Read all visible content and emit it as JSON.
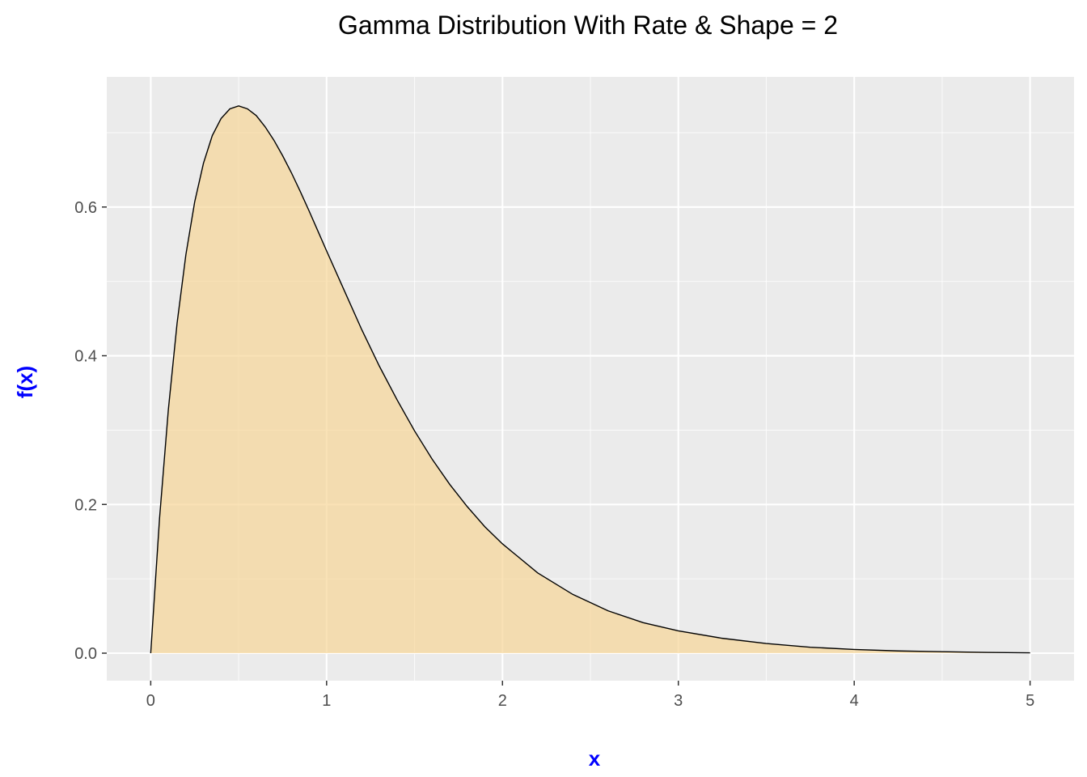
{
  "chart_data": {
    "type": "area",
    "title": "Gamma Distribution With Rate & Shape = 2",
    "xlabel": "x",
    "ylabel": "f(x)",
    "xlim": [
      -0.25,
      5.25
    ],
    "ylim": [
      -0.037,
      0.775
    ],
    "x_ticks": [
      {
        "value": 0,
        "label": "0"
      },
      {
        "value": 1,
        "label": "1"
      },
      {
        "value": 2,
        "label": "2"
      },
      {
        "value": 3,
        "label": "3"
      },
      {
        "value": 4,
        "label": "4"
      },
      {
        "value": 5,
        "label": "5"
      }
    ],
    "y_ticks": [
      {
        "value": 0.0,
        "label": "0.0"
      },
      {
        "value": 0.2,
        "label": "0.2"
      },
      {
        "value": 0.4,
        "label": "0.4"
      },
      {
        "value": 0.6,
        "label": "0.6"
      }
    ],
    "grid": true,
    "legend": "none",
    "series": [
      {
        "fill_color": "#f7d597",
        "fill_opacity": 0.7,
        "line_color": "#000000",
        "x": [
          0.0,
          0.05,
          0.1,
          0.15,
          0.2,
          0.25,
          0.3,
          0.35,
          0.4,
          0.45,
          0.5,
          0.55,
          0.6,
          0.65,
          0.7,
          0.75,
          0.8,
          0.85,
          0.9,
          0.95,
          1.0,
          1.1,
          1.2,
          1.3,
          1.4,
          1.5,
          1.6,
          1.7,
          1.8,
          1.9,
          2.0,
          2.2,
          2.4,
          2.6,
          2.8,
          3.0,
          3.25,
          3.5,
          3.75,
          4.0,
          4.25,
          4.5,
          4.75,
          5.0
        ],
        "y": [
          0.0,
          0.181,
          0.327,
          0.444,
          0.536,
          0.607,
          0.659,
          0.696,
          0.719,
          0.732,
          0.736,
          0.732,
          0.723,
          0.708,
          0.69,
          0.669,
          0.646,
          0.621,
          0.595,
          0.568,
          0.541,
          0.488,
          0.435,
          0.386,
          0.341,
          0.299,
          0.261,
          0.227,
          0.197,
          0.17,
          0.147,
          0.108,
          0.079,
          0.057,
          0.041,
          0.03,
          0.02,
          0.013,
          0.008,
          0.005,
          0.003,
          0.002,
          0.001,
          0.0005
        ]
      }
    ],
    "colors": {
      "panel_background": "#ebebeb",
      "major_grid": "#ffffff",
      "axis_title": "#0000ff",
      "tick_label": "#4d4d4d"
    }
  }
}
